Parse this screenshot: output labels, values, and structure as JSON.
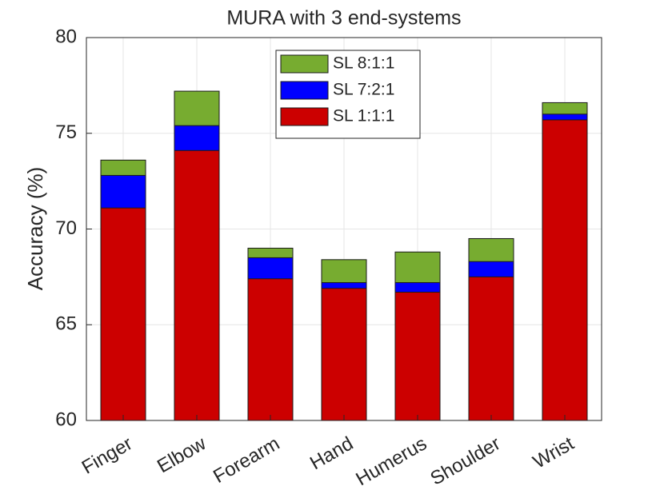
{
  "chart_data": {
    "type": "bar",
    "barmode": "overlay",
    "title": "MURA with 3 end-systems",
    "ylabel": "Accuracy (%)",
    "categories": [
      "Finger",
      "Elbow",
      "Forearm",
      "Hand",
      "Humerus",
      "Shoulder",
      "Wrist"
    ],
    "series": [
      {
        "name": "SL 8:1:1",
        "color": "#77ac30",
        "values": [
          73.6,
          77.2,
          69.0,
          68.4,
          68.8,
          69.5,
          76.6
        ]
      },
      {
        "name": "SL 7:2:1",
        "color": "#0000ff",
        "values": [
          72.8,
          75.4,
          68.5,
          67.2,
          67.2,
          68.3,
          76.0
        ]
      },
      {
        "name": "SL 1:1:1",
        "color": "#cc0000",
        "values": [
          71.1,
          74.1,
          67.4,
          66.9,
          66.7,
          67.5,
          75.7
        ]
      }
    ],
    "ylim": [
      60,
      80
    ],
    "yticks": [
      60,
      65,
      70,
      75,
      80
    ],
    "grid": true,
    "legend": "top"
  }
}
